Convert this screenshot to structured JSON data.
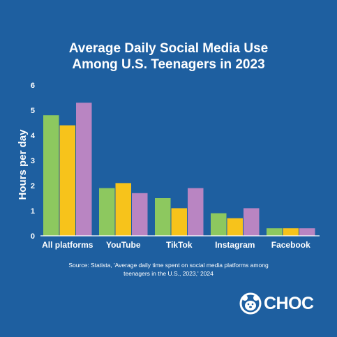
{
  "chart_data": {
    "type": "bar",
    "title_lines": [
      "Average Daily Social Media Use",
      "Among U.S. Teenagers in 2023"
    ],
    "ylabel": "Hours per day",
    "xlabel": "",
    "ylim": [
      0,
      6
    ],
    "yticks": [
      "0",
      "1",
      "2",
      "3",
      "4",
      "5",
      "6"
    ],
    "grid": false,
    "categories": [
      "All platforms",
      "YouTube",
      "TikTok",
      "Instagram",
      "Facebook"
    ],
    "series": [
      {
        "color": "#8dc85f",
        "values": [
          4.8,
          1.9,
          1.5,
          0.9,
          0.3
        ]
      },
      {
        "color": "#f7c31b",
        "values": [
          4.4,
          2.1,
          1.1,
          0.7,
          0.3
        ]
      },
      {
        "color": "#b985c2",
        "values": [
          5.3,
          1.7,
          1.9,
          1.1,
          0.3
        ]
      }
    ]
  },
  "source_lines": [
    "Source: Statista, 'Average daily time spent on social media platforms among",
    "teenagers in the U.S., 2023,' 2024"
  ],
  "logo": {
    "text": "CHOC",
    "icon": "bear-face-icon"
  },
  "colors": {
    "background": "#1e5fa0",
    "text": "#ffffff"
  }
}
